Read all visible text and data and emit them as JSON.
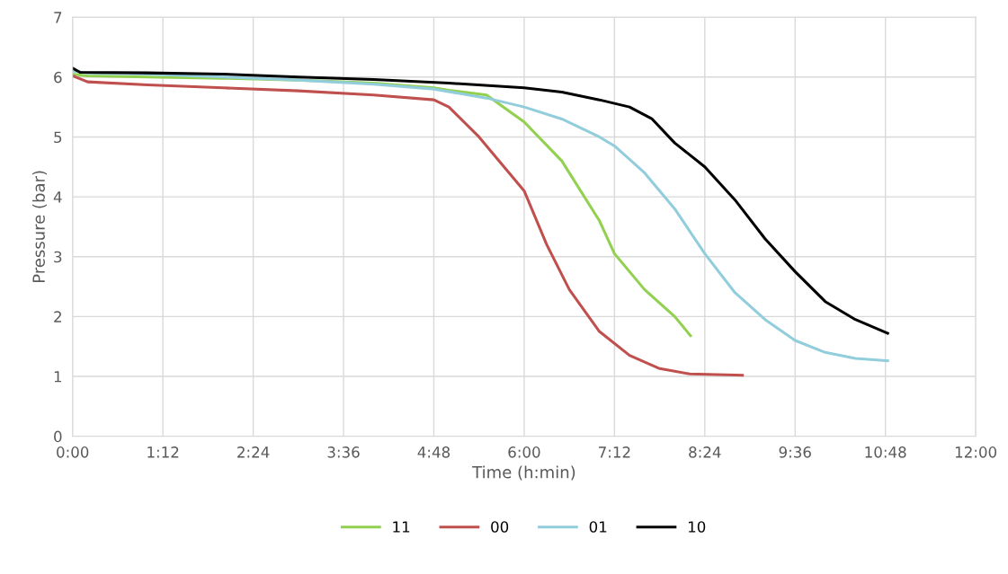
{
  "chart_data": {
    "type": "line",
    "xlabel": "Time (h:min)",
    "ylabel": "Pressure (bar)",
    "xlim": [
      0,
      12
    ],
    "ylim": [
      0,
      7
    ],
    "xticks": [
      {
        "value": 0,
        "label": "0:00"
      },
      {
        "value": 1.2,
        "label": "1:12"
      },
      {
        "value": 2.4,
        "label": "2:24"
      },
      {
        "value": 3.6,
        "label": "3:36"
      },
      {
        "value": 4.8,
        "label": "4:48"
      },
      {
        "value": 6,
        "label": "6:00"
      },
      {
        "value": 7.2,
        "label": "7:12"
      },
      {
        "value": 8.4,
        "label": "8:24"
      },
      {
        "value": 9.6,
        "label": "9:36"
      },
      {
        "value": 10.8,
        "label": "10:48"
      },
      {
        "value": 12,
        "label": "12:00"
      }
    ],
    "yticks": [
      0,
      1,
      2,
      3,
      4,
      5,
      6,
      7
    ],
    "grid": true,
    "legend": "bottom",
    "marker": "none",
    "line_style": "solid",
    "series": [
      {
        "name": "11",
        "color": "#92d050",
        "x": [
          0,
          0.2,
          1,
          2,
          3,
          4,
          4.8,
          5.0,
          5.5,
          6.0,
          6.5,
          7.0,
          7.2,
          7.6,
          8.0,
          8.21
        ],
        "values": [
          6.05,
          6.02,
          6.0,
          5.98,
          5.95,
          5.9,
          5.82,
          5.78,
          5.7,
          5.25,
          4.6,
          3.6,
          3.05,
          2.45,
          2.0,
          1.68
        ]
      },
      {
        "name": "00",
        "color": "#c0504d",
        "x": [
          0,
          0.2,
          1,
          2,
          3,
          4,
          4.8,
          5.0,
          5.4,
          5.8,
          6.0,
          6.3,
          6.6,
          7.0,
          7.4,
          7.8,
          8.2,
          8.9
        ],
        "values": [
          6.02,
          5.92,
          5.87,
          5.82,
          5.77,
          5.7,
          5.62,
          5.5,
          5.0,
          4.4,
          4.1,
          3.2,
          2.45,
          1.75,
          1.35,
          1.13,
          1.04,
          1.02
        ]
      },
      {
        "name": "01",
        "color": "#92cddc",
        "x": [
          0,
          0.2,
          1,
          2,
          3,
          4,
          4.8,
          5.5,
          6.0,
          6.5,
          7.0,
          7.2,
          7.6,
          8.0,
          8.4,
          8.8,
          9.2,
          9.6,
          10.0,
          10.4,
          10.83
        ],
        "values": [
          6.1,
          6.07,
          6.05,
          6.0,
          5.95,
          5.88,
          5.8,
          5.65,
          5.5,
          5.3,
          5.0,
          4.85,
          4.4,
          3.8,
          3.05,
          2.4,
          1.95,
          1.6,
          1.4,
          1.3,
          1.26
        ]
      },
      {
        "name": "10",
        "color": "#000000",
        "x": [
          0,
          0.1,
          1,
          2,
          3,
          4,
          5,
          6.0,
          6.5,
          7.0,
          7.4,
          7.7,
          8.0,
          8.4,
          8.8,
          9.2,
          9.6,
          10.0,
          10.4,
          10.83
        ],
        "values": [
          6.15,
          6.08,
          6.07,
          6.05,
          6.0,
          5.96,
          5.9,
          5.82,
          5.75,
          5.62,
          5.5,
          5.3,
          4.9,
          4.5,
          3.95,
          3.3,
          2.75,
          2.25,
          1.95,
          1.72
        ]
      }
    ]
  }
}
